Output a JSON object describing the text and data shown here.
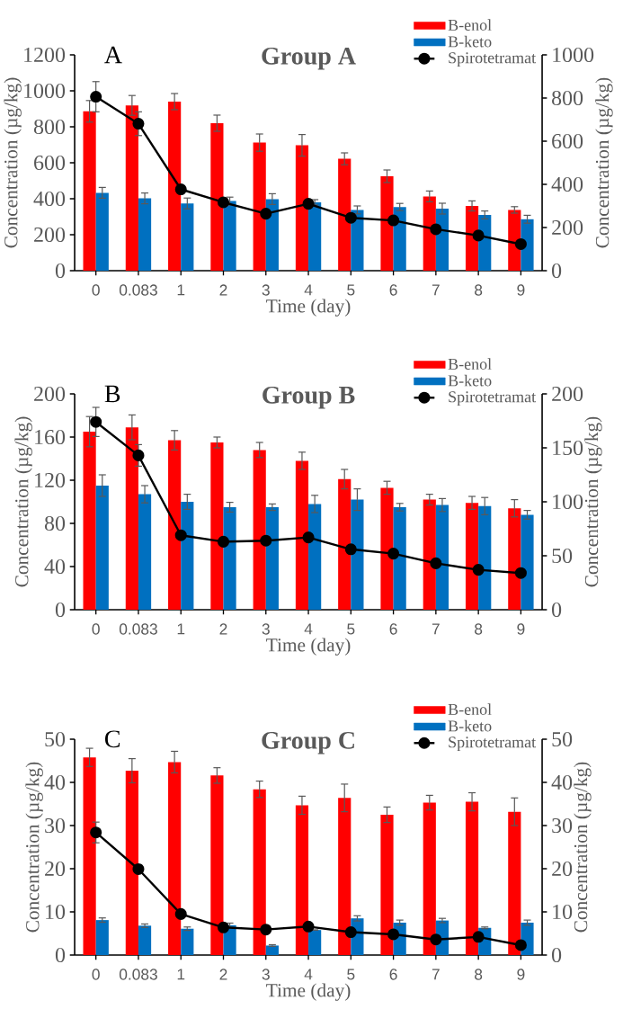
{
  "chart_data": [
    {
      "type": "bar",
      "title": "Group A",
      "annotations": [
        "A"
      ],
      "xlabel": "Time (day)",
      "ylabel": "Concentration (µg/kg)",
      "y2label": "Concentration (µg/kg)",
      "categories": [
        "0",
        "0.083",
        "1",
        "2",
        "3",
        "4",
        "5",
        "6",
        "7",
        "8",
        "9"
      ],
      "ylim": [
        0,
        1200
      ],
      "yticks": [
        0,
        200,
        400,
        600,
        800,
        1000,
        1200
      ],
      "y2lim": [
        0,
        1000
      ],
      "y2ticks": [
        0,
        200,
        400,
        600,
        800,
        1000
      ],
      "legend": "top right",
      "marker": "circle",
      "series": [
        {
          "name": "B-enol",
          "color": "#ff0000",
          "values": [
            886,
            919,
            940,
            820,
            712,
            697,
            622,
            525,
            413,
            360,
            338
          ],
          "errors": [
            60,
            55,
            45,
            45,
            48,
            60,
            33,
            35,
            30,
            28,
            18
          ]
        },
        {
          "name": "B-keto",
          "color": "#0070c0",
          "values": [
            433,
            402,
            374,
            387,
            398,
            380,
            338,
            354,
            345,
            310,
            286
          ],
          "errors": [
            30,
            30,
            30,
            22,
            30,
            15,
            22,
            20,
            30,
            22,
            22
          ]
        },
        {
          "name": "Spirotetramat",
          "color": "#000000",
          "type": "line",
          "axis": "y2",
          "values": [
            806,
            681,
            377,
            317,
            264,
            310,
            245,
            233,
            192,
            163,
            123
          ],
          "errors": [
            70,
            55,
            null,
            null,
            null,
            null,
            null,
            null,
            null,
            null,
            null
          ]
        }
      ]
    },
    {
      "type": "bar",
      "title": "Group B",
      "annotations": [
        "B"
      ],
      "xlabel": "Time (day)",
      "ylabel": "Concentration (µg/kg)",
      "y2label": "Concentration (µg/kg)",
      "categories": [
        "0",
        "0.083",
        "1",
        "2",
        "3",
        "4",
        "5",
        "6",
        "7",
        "8",
        "9"
      ],
      "ylim": [
        0,
        200
      ],
      "yticks": [
        0,
        40,
        80,
        120,
        160,
        200
      ],
      "y2lim": [
        0,
        200
      ],
      "y2ticks": [
        0,
        50,
        100,
        150,
        200
      ],
      "legend": "top right",
      "marker": "circle",
      "series": [
        {
          "name": "B-enol",
          "color": "#ff0000",
          "values": [
            165,
            169,
            157,
            155,
            148,
            138,
            121,
            113,
            102,
            99,
            94
          ],
          "errors": [
            14,
            11.5,
            9,
            5,
            7,
            8,
            9,
            6,
            5,
            6,
            8
          ]
        },
        {
          "name": "B-keto",
          "color": "#0070c0",
          "values": [
            115,
            107,
            100,
            95,
            95,
            98,
            102,
            95,
            97,
            96,
            88
          ],
          "errors": [
            10,
            8,
            7,
            4.5,
            3,
            8,
            10,
            3.5,
            6,
            8,
            4
          ]
        },
        {
          "name": "Spirotetramat",
          "color": "#000000",
          "type": "line",
          "axis": "y2",
          "values": [
            174,
            143,
            69,
            63,
            64,
            67,
            56,
            52,
            43,
            37,
            34
          ],
          "errors": [
            13.5,
            10,
            null,
            null,
            null,
            null,
            null,
            null,
            null,
            null,
            null
          ]
        }
      ]
    },
    {
      "type": "bar",
      "title": "Group C",
      "annotations": [
        "C"
      ],
      "xlabel": "Time (day)",
      "ylabel": "Concentration (µg/kg)",
      "y2label": "Concentration (µg/kg)",
      "categories": [
        "0",
        "0.083",
        "1",
        "2",
        "3",
        "4",
        "5",
        "6",
        "7",
        "8",
        "9"
      ],
      "ylim": [
        0,
        50
      ],
      "yticks": [
        0,
        10,
        20,
        30,
        40,
        50
      ],
      "y2lim": [
        0,
        50
      ],
      "y2ticks": [
        0,
        10,
        20,
        30,
        40,
        50
      ],
      "legend": "top right",
      "marker": "circle",
      "series": [
        {
          "name": "B-enol",
          "color": "#ff0000",
          "values": [
            45.8,
            42.7,
            44.7,
            41.6,
            38.4,
            34.7,
            36.4,
            32.5,
            35.3,
            35.5,
            33.2
          ],
          "errors": [
            2.1,
            2.8,
            2.5,
            1.8,
            1.9,
            2.1,
            3.2,
            1.8,
            1.7,
            2.1,
            3.2
          ]
        },
        {
          "name": "B-keto",
          "color": "#0070c0",
          "values": [
            8.1,
            6.8,
            6.1,
            6.9,
            2.2,
            5.8,
            8.5,
            7.5,
            8.0,
            6.3,
            7.5
          ],
          "errors": [
            0.5,
            0.4,
            0.4,
            0.5,
            0.2,
            null,
            0.6,
            0.6,
            0.5,
            0.2,
            0.6
          ]
        },
        {
          "name": "Spirotetramat",
          "color": "#000000",
          "type": "line",
          "axis": "y2",
          "values": [
            28.4,
            19.9,
            9.5,
            6.4,
            5.9,
            6.6,
            5.3,
            4.8,
            3.6,
            4.2,
            2.3
          ],
          "errors": [
            2.4,
            1,
            null,
            null,
            null,
            null,
            null,
            null,
            null,
            null,
            null
          ]
        }
      ]
    }
  ]
}
